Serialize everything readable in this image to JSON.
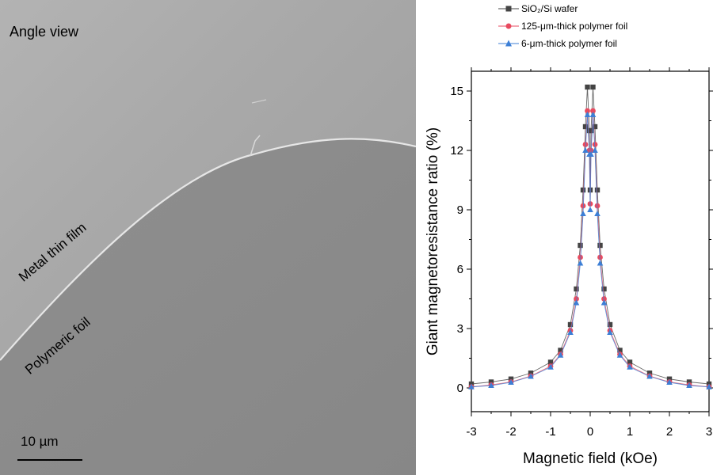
{
  "sem_image": {
    "title": "Angle view",
    "label_metal": "Metal thin film",
    "label_polymer": "Polymeric foil",
    "scale_bar_label": "10 µm"
  },
  "chart_data": {
    "type": "scatter",
    "xlabel": "Magnetic field (kOe)",
    "ylabel": "Giant magnetoresistance ratio (%)",
    "xlim": [
      -3,
      3
    ],
    "ylim": [
      -1.2,
      16
    ],
    "xticks": [
      -3,
      -2,
      -1,
      0,
      1,
      2,
      3
    ],
    "yticks": [
      0,
      3,
      6,
      9,
      12,
      15
    ],
    "legend_position": "top",
    "series": [
      {
        "name": "SiO₂/Si wafer",
        "color": "#444444",
        "marker": "square",
        "x": [
          -3.0,
          -2.5,
          -2.0,
          -1.5,
          -1.0,
          -0.75,
          -0.5,
          -0.35,
          -0.25,
          -0.18,
          -0.12,
          -0.07,
          -0.02,
          0.0,
          0.02,
          0.07,
          0.12,
          0.18,
          0.25,
          0.35,
          0.5,
          0.75,
          1.0,
          1.5,
          2.0,
          2.5,
          3.0
        ],
        "y": [
          0.2,
          0.3,
          0.45,
          0.75,
          1.3,
          1.9,
          3.2,
          5.0,
          7.2,
          10.0,
          13.2,
          15.2,
          13.0,
          10.0,
          13.0,
          15.2,
          13.2,
          10.0,
          7.2,
          5.0,
          3.2,
          1.9,
          1.3,
          0.75,
          0.45,
          0.3,
          0.2
        ]
      },
      {
        "name": "125-μm-thick polymer foil",
        "color": "#e84a5f",
        "marker": "circle",
        "x": [
          -3.0,
          -2.5,
          -2.0,
          -1.5,
          -1.0,
          -0.75,
          -0.5,
          -0.35,
          -0.25,
          -0.18,
          -0.12,
          -0.07,
          -0.02,
          0.0,
          0.02,
          0.07,
          0.12,
          0.18,
          0.25,
          0.35,
          0.5,
          0.75,
          1.0,
          1.5,
          2.0,
          2.5,
          3.0
        ],
        "y": [
          0.05,
          0.15,
          0.3,
          0.6,
          1.1,
          1.7,
          2.9,
          4.5,
          6.6,
          9.2,
          12.3,
          14.0,
          12.0,
          9.3,
          12.0,
          14.0,
          12.3,
          9.2,
          6.6,
          4.5,
          2.9,
          1.7,
          1.1,
          0.6,
          0.3,
          0.15,
          0.05
        ]
      },
      {
        "name": "6-μm-thick polymer foil",
        "color": "#3d7fd6",
        "marker": "triangle",
        "x": [
          -3.0,
          -2.5,
          -2.0,
          -1.5,
          -1.0,
          -0.75,
          -0.5,
          -0.35,
          -0.25,
          -0.18,
          -0.12,
          -0.07,
          -0.02,
          0.0,
          0.02,
          0.07,
          0.12,
          0.18,
          0.25,
          0.35,
          0.5,
          0.75,
          1.0,
          1.5,
          2.0,
          2.5,
          3.0
        ],
        "y": [
          0.05,
          0.12,
          0.28,
          0.58,
          1.05,
          1.65,
          2.8,
          4.3,
          6.3,
          8.8,
          12.0,
          13.8,
          11.8,
          9.0,
          11.8,
          13.8,
          12.0,
          8.8,
          6.3,
          4.3,
          2.8,
          1.65,
          1.05,
          0.58,
          0.28,
          0.12,
          0.05
        ]
      }
    ]
  }
}
